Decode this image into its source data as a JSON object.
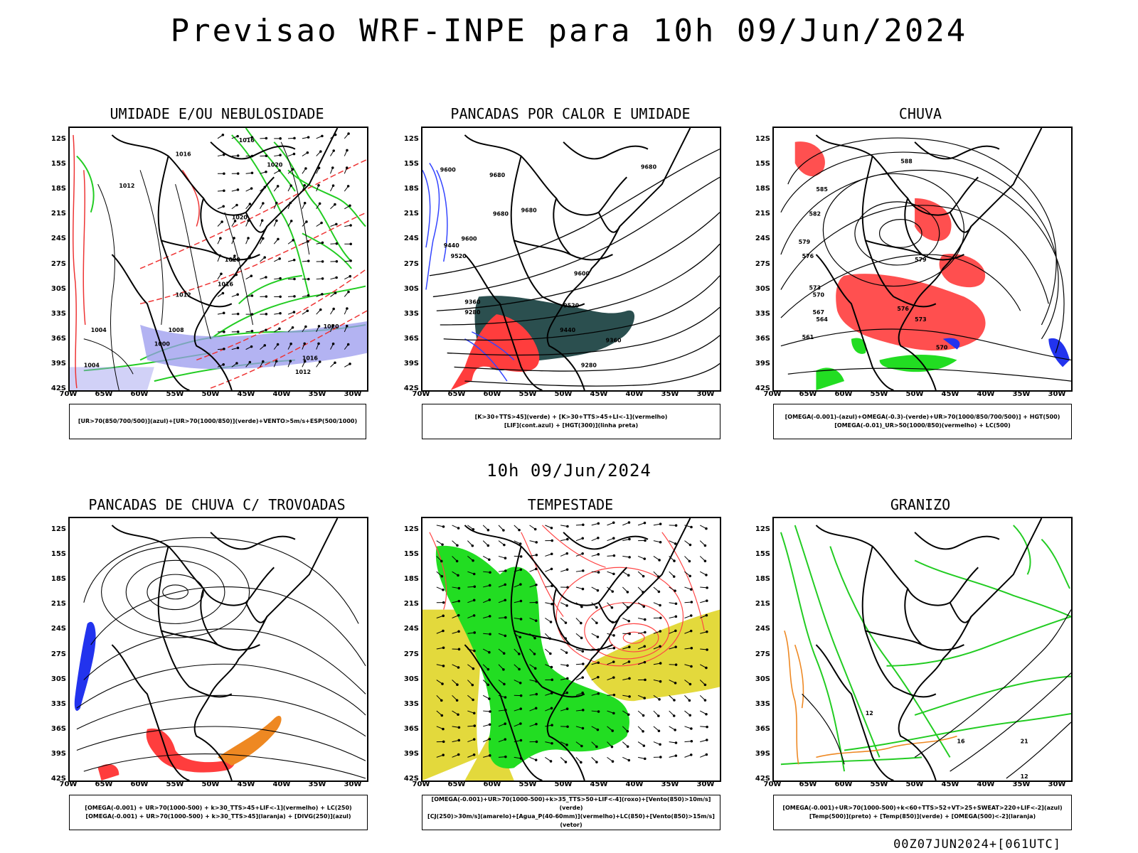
{
  "main_title": "Previsao WRF-INPE  para 10h 09/Jun/2024",
  "mid_title": "10h 09/Jun/2024",
  "footer": "00Z07JUN2024+[061UTC]",
  "lat_labels": [
    "12S",
    "15S",
    "18S",
    "21S",
    "24S",
    "27S",
    "30S",
    "33S",
    "36S",
    "39S",
    "42S"
  ],
  "lon_labels": [
    "70W",
    "65W",
    "60W",
    "55W",
    "50W",
    "45W",
    "40W",
    "35W",
    "30W"
  ],
  "colors": {
    "green": "#22cc22",
    "red": "#ff3333",
    "blue": "#3333ff",
    "yellow": "#e3d93c",
    "teal": "#2b4f4f",
    "orange": "#ee8822",
    "lavender": "#9999ee"
  },
  "panels": [
    {
      "title": "UMIDADE E/OU NEBULOSIDADE",
      "legend": [
        "[UR>70(850/700/500)](azul)+[UR>70(1000/850)](verde)+VENTO>5m/s+ESP(500/1000)"
      ]
    },
    {
      "title": "PANCADAS POR CALOR E UMIDADE",
      "legend": [
        "[K>30+TTS>45](verde) + [K>30+TTS>45+LI<-1](vermelho)",
        "[LIF](cont.azul) + [HGT(300)](linha preta)"
      ]
    },
    {
      "title": "CHUVA",
      "legend": [
        "[OMEGA(-0.001)-(azul)+OMEGA(-0.3)-(verde)+UR>70(1000/850/700/500)] + HGT(500)",
        "[OMEGA(-0.01)_UR>50(1000/850)(vermelho) + LC(500)"
      ]
    },
    {
      "title": "PANCADAS DE CHUVA C/ TROVOADAS",
      "legend": [
        "[OMEGA(-0.001) + UR>70(1000-500) + k>30_TTS>45+LIF<-1](vermelho) + LC(250)",
        "[OMEGA(-0.001) + UR>70(1000-500) + k>30_TTS>45](laranja) + [DIVG(250)](azul)"
      ]
    },
    {
      "title": "TEMPESTADE",
      "legend": [
        "[OMEGA(-0.001)+UR>70(1000-500)+k>35_TTS>50+LIF<-4](roxo)+[Vento(850)>10m/s](verde)",
        "[CJ(250)>30m/s](amarelo)+[Agua_P(40-60mm)](vermelho)+LC(850)+[Vento(850)>15m/s](vetor)"
      ]
    },
    {
      "title": "GRANIZO",
      "legend": [
        "[OMEGA(-0.001)+UR>70(1000-500)+k<60+TTS>52+VT>25+SWEAT>220+LIF<-2](azul)",
        "[Temp(500)](preto) + [Temp(850)](verde) + [OMEGA(500)<-2](laranja)"
      ]
    }
  ],
  "contour_labels": {
    "p0": [
      "1016",
      "1016",
      "1020",
      "1012",
      "1020",
      "1020",
      "1016",
      "1012",
      "1008",
      "1004",
      "1000",
      "1020",
      "1016",
      "1012",
      "1004"
    ],
    "p1": [
      "9600",
      "9680",
      "9680",
      "9680",
      "9680",
      "9600",
      "9520",
      "9440",
      "9360",
      "9280",
      "9600",
      "9520",
      "9440",
      "9360",
      "9280"
    ],
    "p2": [
      "588",
      "585",
      "582",
      "579",
      "576",
      "573",
      "570",
      "567",
      "564",
      "561",
      "579",
      "576",
      "573",
      "570"
    ],
    "p5": [
      "12",
      "16",
      "21",
      "12"
    ]
  }
}
